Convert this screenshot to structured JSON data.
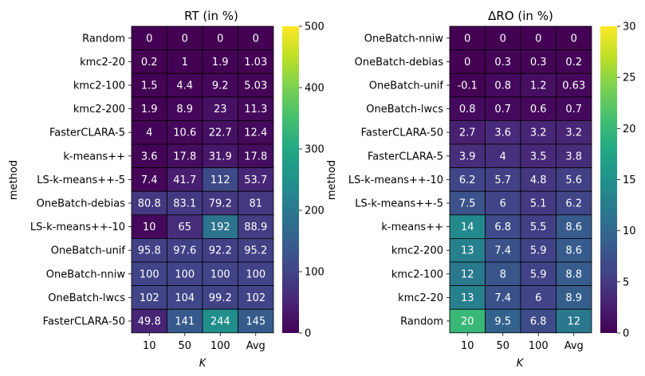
{
  "chart_data": [
    {
      "type": "heatmap",
      "title": "RT (in %)",
      "xlabel": "K",
      "ylabel": "method",
      "columns": [
        "10",
        "50",
        "100",
        "Avg"
      ],
      "rows": [
        "Random",
        "kmc2-20",
        "kmc2-100",
        "kmc2-200",
        "FasterCLARA-5",
        "k-means++",
        "LS-k-means++-5",
        "OneBatch-debias",
        "LS-k-means++-10",
        "OneBatch-unif",
        "OneBatch-nniw",
        "OneBatch-lwcs",
        "FasterCLARA-50"
      ],
      "values": [
        [
          0,
          0,
          0,
          0
        ],
        [
          0.2,
          1,
          1.9,
          1.03
        ],
        [
          1.5,
          4.4,
          9.2,
          5.03
        ],
        [
          1.9,
          8.9,
          23,
          11.3
        ],
        [
          4,
          10.6,
          22.7,
          12.4
        ],
        [
          3.6,
          17.8,
          31.9,
          17.8
        ],
        [
          7.4,
          41.7,
          112,
          53.7
        ],
        [
          80.8,
          83.1,
          79.2,
          81
        ],
        [
          10,
          65,
          192,
          88.9
        ],
        [
          95.8,
          97.6,
          92.2,
          95.2
        ],
        [
          100,
          100,
          100,
          100
        ],
        [
          102,
          104,
          99.2,
          102
        ],
        [
          49.8,
          141,
          244,
          145
        ]
      ],
      "colorbar": {
        "min": 0,
        "max": 500,
        "ticks": [
          0,
          100,
          200,
          300,
          400,
          500
        ]
      },
      "colormap": "viridis"
    },
    {
      "type": "heatmap",
      "title": "ΔRO (in %)",
      "xlabel": "K",
      "ylabel": "method",
      "columns": [
        "10",
        "50",
        "100",
        "Avg"
      ],
      "rows": [
        "OneBatch-nniw",
        "OneBatch-debias",
        "OneBatch-unif",
        "OneBatch-lwcs",
        "FasterCLARA-50",
        "FasterCLARA-5",
        "LS-k-means++-10",
        "LS-k-means++-5",
        "k-means++",
        "kmc2-200",
        "kmc2-100",
        "kmc2-20",
        "Random"
      ],
      "values": [
        [
          0,
          0,
          0,
          0
        ],
        [
          0,
          0.3,
          0.3,
          0.2
        ],
        [
          -0.1,
          0.8,
          1.2,
          0.63
        ],
        [
          0.8,
          0.7,
          0.6,
          0.7
        ],
        [
          2.7,
          3.6,
          3.2,
          3.2
        ],
        [
          3.9,
          4,
          3.5,
          3.8
        ],
        [
          6.2,
          5.7,
          4.8,
          5.6
        ],
        [
          7.5,
          6,
          5.1,
          6.2
        ],
        [
          14,
          6.8,
          5.5,
          8.6
        ],
        [
          13,
          7.4,
          5.9,
          8.6
        ],
        [
          12,
          8,
          5.9,
          8.8
        ],
        [
          13,
          7.4,
          6,
          8.9
        ],
        [
          20,
          9.5,
          6.8,
          12
        ]
      ],
      "colorbar": {
        "min": 0,
        "max": 30,
        "ticks": [
          0,
          5,
          10,
          15,
          20,
          25,
          30
        ]
      },
      "colormap": "viridis"
    }
  ]
}
